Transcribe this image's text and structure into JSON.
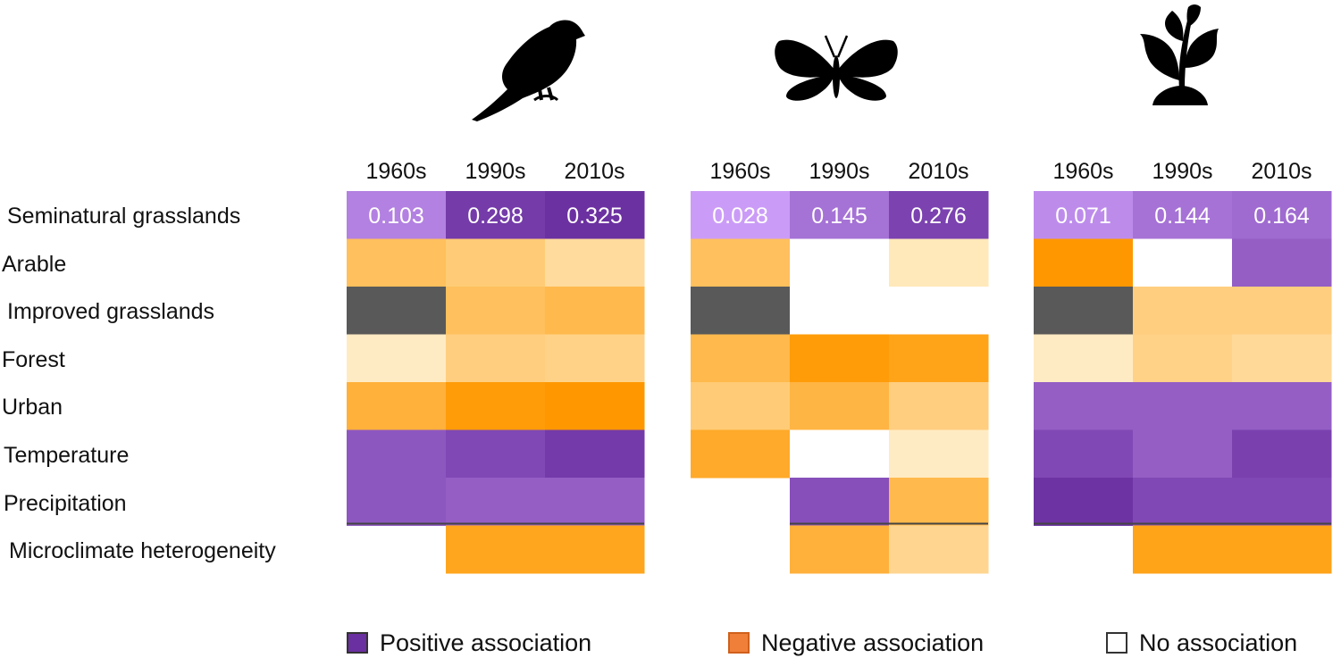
{
  "chart_data": {
    "type": "heatmap",
    "title": "",
    "decades": [
      "1960s",
      "1990s",
      "2010s"
    ],
    "rows": [
      "Seminatural grasslands",
      "Arable",
      "Improved grasslands",
      "Forest",
      "Urban",
      "Temperature",
      "Precipitation",
      "Microclimate heterogeneity"
    ],
    "panels": [
      {
        "name": "birds",
        "icon": "bird-icon",
        "values": [
          [
            0.103,
            0.298,
            0.325
          ],
          [
            -0.3,
            -0.24,
            -0.15
          ],
          [
            null,
            -0.3,
            -0.34
          ],
          [
            -0.06,
            -0.22,
            -0.2
          ],
          [
            -0.38,
            -0.5,
            -0.52
          ],
          [
            0.22,
            0.26,
            0.3
          ],
          [
            0.22,
            0.2,
            0.2
          ],
          [
            null,
            -0.45,
            -0.45
          ]
        ],
        "cell_labels": [
          [
            "0.103",
            "0.298",
            "0.325"
          ],
          [
            "",
            "",
            ""
          ],
          [
            "",
            "",
            ""
          ],
          [
            "",
            "",
            ""
          ],
          [
            "",
            "",
            ""
          ],
          [
            "",
            "",
            ""
          ],
          [
            "",
            "",
            ""
          ],
          [
            "",
            "",
            ""
          ]
        ]
      },
      {
        "name": "butterflies",
        "icon": "butterfly-icon",
        "values": [
          [
            0.028,
            0.145,
            0.276
          ],
          [
            -0.3,
            0,
            -0.08
          ],
          [
            null,
            0,
            0
          ],
          [
            -0.34,
            -0.5,
            -0.46
          ],
          [
            -0.24,
            -0.36,
            -0.22
          ],
          [
            -0.42,
            0,
            -0.06
          ],
          [
            null,
            0.24,
            -0.34
          ],
          [
            null,
            -0.38,
            -0.18
          ]
        ],
        "cell_labels": [
          [
            "0.028",
            "0.145",
            "0.276"
          ],
          [
            "",
            "",
            ""
          ],
          [
            "",
            "",
            ""
          ],
          [
            "",
            "",
            ""
          ],
          [
            "",
            "",
            ""
          ],
          [
            "",
            "",
            ""
          ],
          [
            "",
            "",
            ""
          ],
          [
            "",
            "",
            ""
          ]
        ]
      },
      {
        "name": "plants",
        "icon": "plant-icon",
        "values": [
          [
            0.071,
            0.144,
            0.164
          ],
          [
            -0.52,
            0,
            0.2
          ],
          [
            null,
            -0.22,
            -0.22
          ],
          [
            -0.06,
            -0.2,
            -0.16
          ],
          [
            0.2,
            0.2,
            0.2
          ],
          [
            0.26,
            0.2,
            0.28
          ],
          [
            0.32,
            0.26,
            0.26
          ],
          [
            null,
            -0.46,
            -0.46
          ]
        ],
        "cell_labels": [
          [
            "0.071",
            "0.144",
            "0.164"
          ],
          [
            "",
            "",
            ""
          ],
          [
            "",
            "",
            ""
          ],
          [
            "",
            "",
            ""
          ],
          [
            "",
            "",
            ""
          ],
          [
            "",
            "",
            ""
          ],
          [
            "",
            "",
            ""
          ],
          [
            "",
            "",
            ""
          ]
        ]
      }
    ],
    "legend": [
      {
        "label": "Positive association",
        "color": "#6a2fa0"
      },
      {
        "label": "Negative association",
        "color": "#f07f3a"
      },
      {
        "label": "No association",
        "color": "#ffffff"
      }
    ]
  },
  "colors": {
    "na_gray": "#595959",
    "cell_text": "#ffffff",
    "separator": "#444444"
  }
}
